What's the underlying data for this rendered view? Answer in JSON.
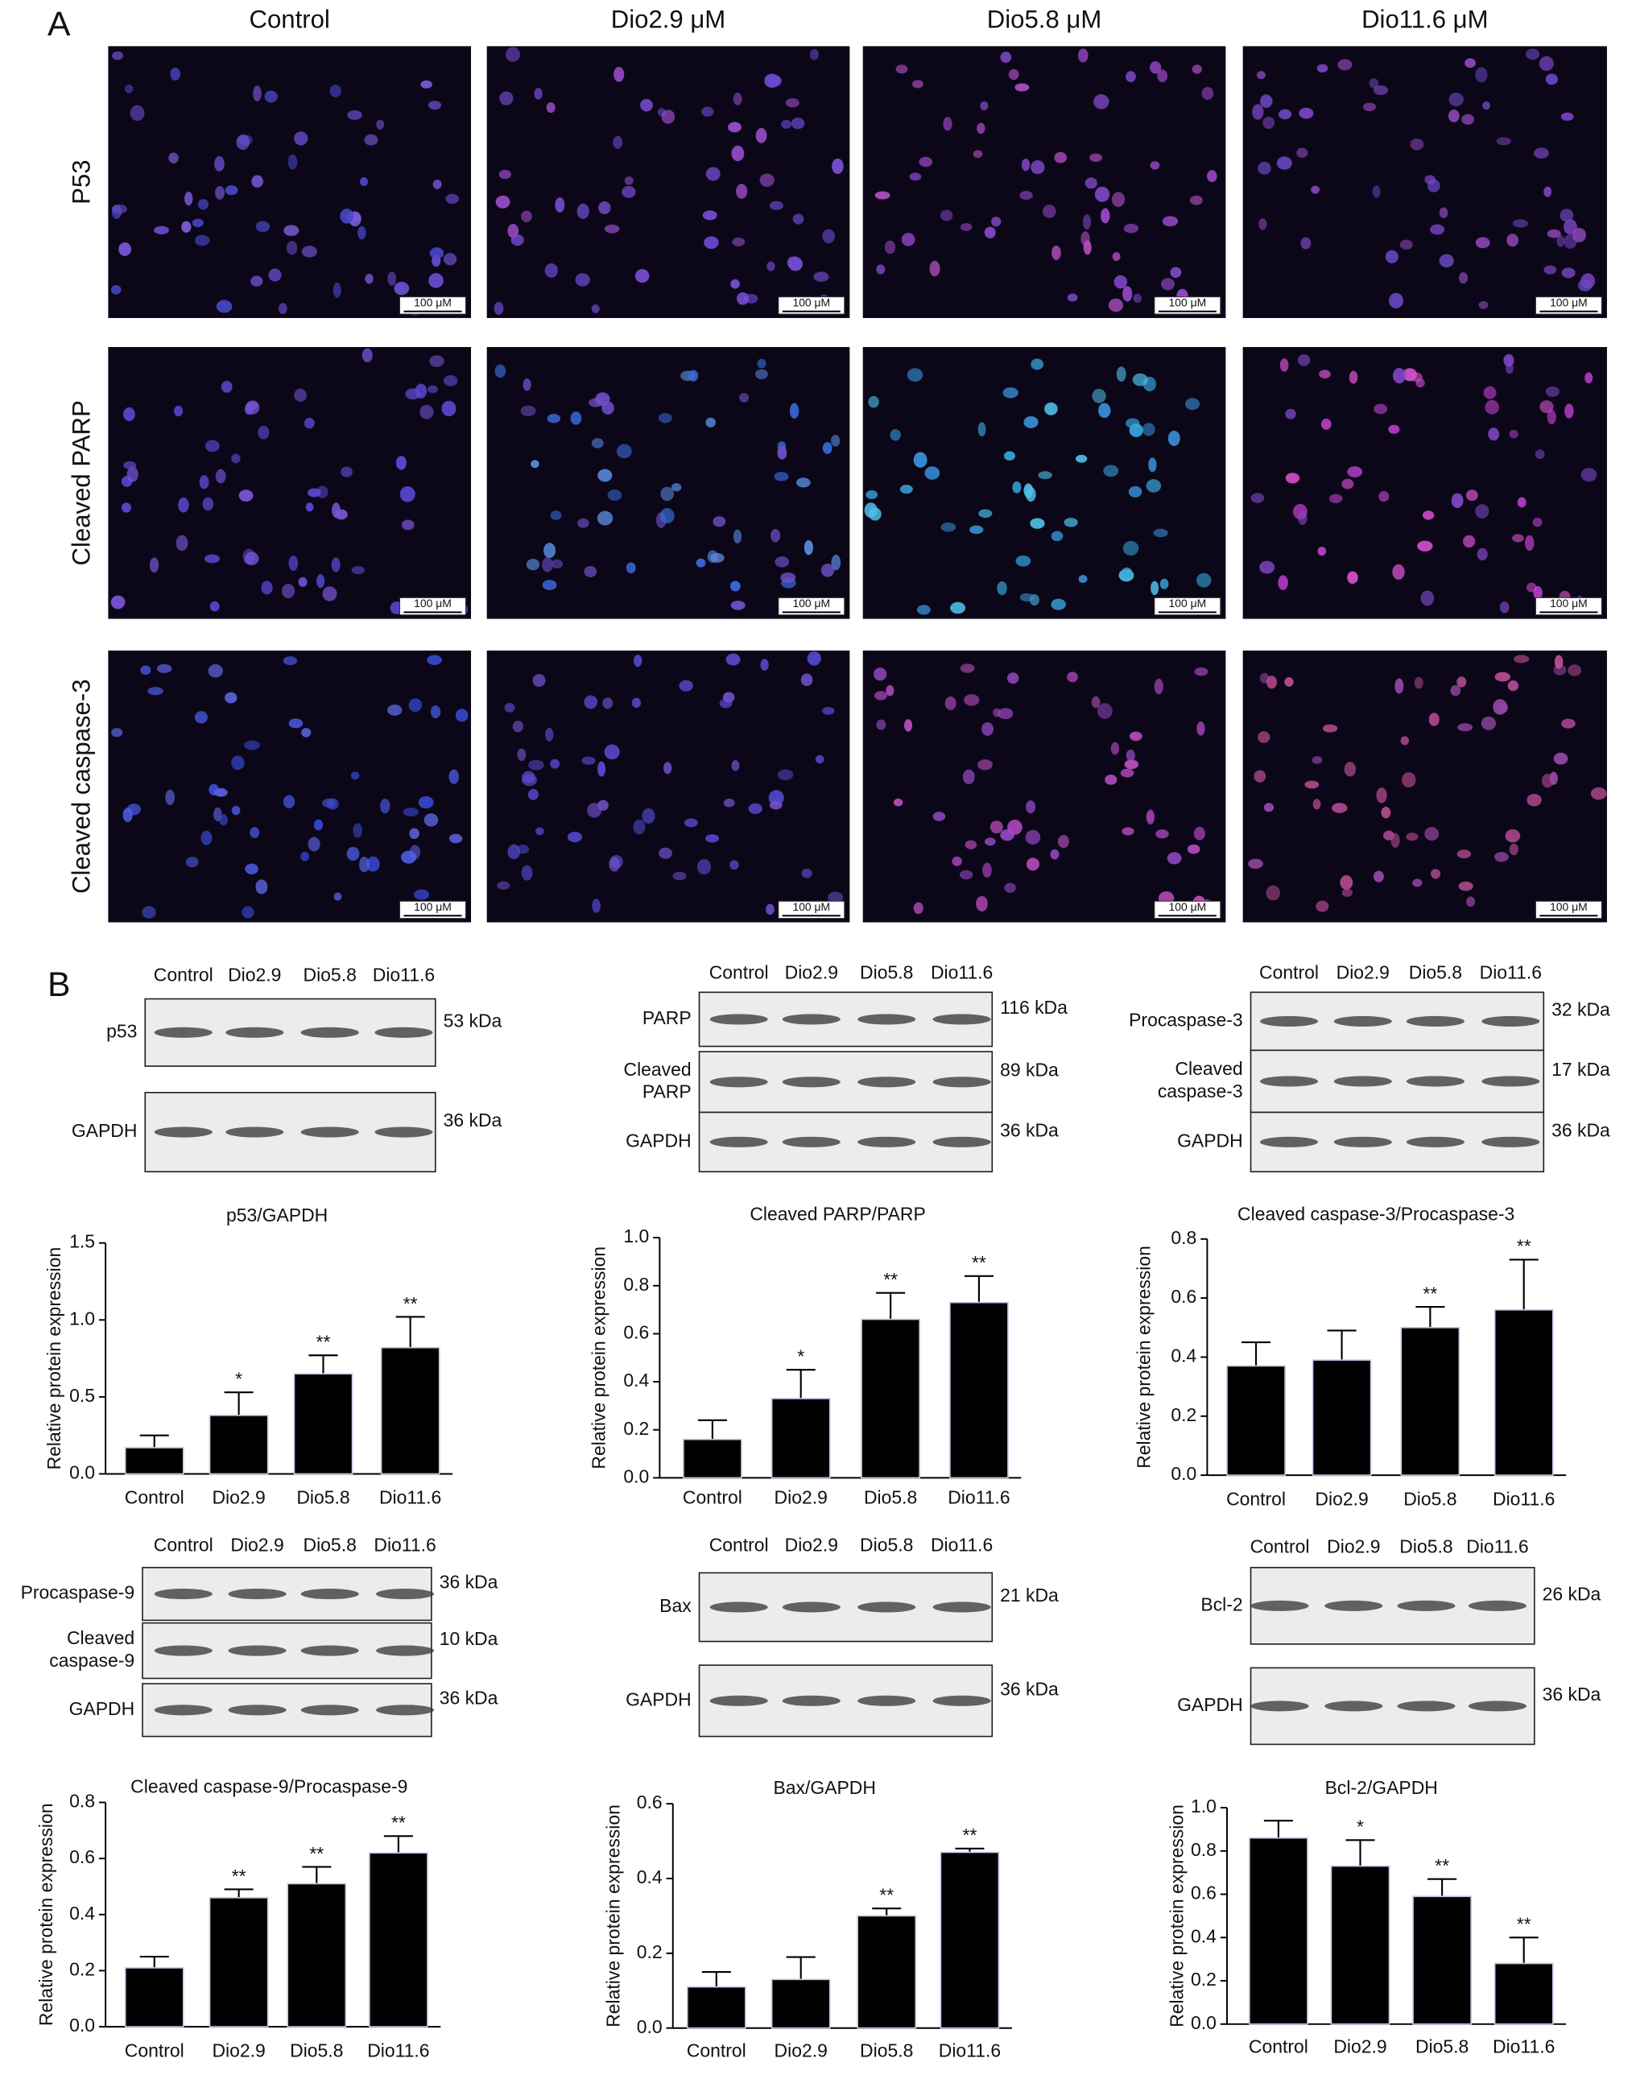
{
  "panel_a": {
    "label": "A",
    "columns": [
      "Control",
      "Dio2.9 μM",
      "Dio5.8 μM",
      "Dio11.6 μM"
    ],
    "rows": [
      "P53",
      "Cleaved PARP",
      "Cleaved caspase-3"
    ],
    "scale_bar": "100 μM"
  },
  "panel_b": {
    "label": "B"
  },
  "blots": [
    {
      "lanes": [
        "Control",
        "Dio2.9",
        "Dio5.8",
        "Dio11.6"
      ],
      "rows": [
        {
          "label": [
            "p53"
          ],
          "size": "53 kDa"
        },
        {
          "label": [
            "GAPDH"
          ],
          "size": "36 kDa"
        }
      ]
    },
    {
      "lanes": [
        "Control",
        "Dio2.9",
        "Dio5.8",
        "Dio11.6"
      ],
      "rows": [
        {
          "label": [
            "PARP"
          ],
          "size": "116 kDa"
        },
        {
          "label": [
            "Cleaved",
            "PARP"
          ],
          "size": "89 kDa"
        },
        {
          "label": [
            "GAPDH"
          ],
          "size": "36 kDa"
        }
      ]
    },
    {
      "lanes": [
        "Control",
        "Dio2.9",
        "Dio5.8",
        "Dio11.6"
      ],
      "rows": [
        {
          "label": [
            "Procaspase-3"
          ],
          "size": "32 kDa"
        },
        {
          "label": [
            "Cleaved",
            "caspase-3"
          ],
          "size": "17 kDa"
        },
        {
          "label": [
            "GAPDH"
          ],
          "size": "36 kDa"
        }
      ]
    },
    {
      "lanes": [
        "Control",
        "Dio2.9",
        "Dio5.8",
        "Dio11.6"
      ],
      "rows": [
        {
          "label": [
            "Procaspase-9"
          ],
          "size": "36 kDa"
        },
        {
          "label": [
            "Cleaved",
            "caspase-9"
          ],
          "size": "10 kDa"
        },
        {
          "label": [
            "GAPDH"
          ],
          "size": "36 kDa"
        }
      ]
    },
    {
      "lanes": [
        "Control",
        "Dio2.9",
        "Dio5.8",
        "Dio11.6"
      ],
      "rows": [
        {
          "label": [
            "Bax"
          ],
          "size": "21 kDa"
        },
        {
          "label": [
            "GAPDH"
          ],
          "size": "36 kDa"
        }
      ]
    },
    {
      "lanes": [
        "Control",
        "Dio2.9",
        "Dio5.8",
        "Dio11.6"
      ],
      "rows": [
        {
          "label": [
            "Bcl-2"
          ],
          "size": "26 kDa"
        },
        {
          "label": [
            "GAPDH"
          ],
          "size": "36 kDa"
        }
      ]
    }
  ],
  "chart_data": [
    {
      "type": "bar",
      "title": "p53/GAPDH",
      "y_label": "Relative protein expression",
      "categories": [
        "Control",
        "Dio2.9",
        "Dio5.8",
        "Dio11.6"
      ],
      "values": [
        0.17,
        0.38,
        0.65,
        0.82
      ],
      "errors": [
        0.08,
        0.15,
        0.12,
        0.2
      ],
      "annotations": [
        null,
        "*",
        "**",
        "**"
      ],
      "color": "#000000",
      "ylim": [
        0,
        1.5
      ],
      "yticks": [
        {
          "value": 0,
          "label": "0.0"
        },
        {
          "value": 0.5,
          "label": "0.5"
        },
        {
          "value": 1,
          "label": "1.0"
        },
        {
          "value": 1.5,
          "label": "1.5"
        }
      ]
    },
    {
      "type": "bar",
      "title": "Cleaved PARP/PARP",
      "y_label": "Relative protein expression",
      "categories": [
        "Control",
        "Dio2.9",
        "Dio5.8",
        "Dio11.6"
      ],
      "values": [
        0.16,
        0.33,
        0.66,
        0.73
      ],
      "errors": [
        0.08,
        0.12,
        0.11,
        0.11
      ],
      "annotations": [
        null,
        "*",
        "**",
        "**"
      ],
      "color": "#000000",
      "ylim": [
        0,
        1
      ],
      "yticks": [
        {
          "value": 0,
          "label": "0.0"
        },
        0.2,
        0.4,
        0.6,
        0.8,
        {
          "value": 1,
          "label": "1.0"
        }
      ]
    },
    {
      "type": "bar",
      "title": "Cleaved caspase-3/Procaspase-3",
      "y_label": "Relative protein expression",
      "categories": [
        "Control",
        "Dio2.9",
        "Dio5.8",
        "Dio11.6"
      ],
      "values": [
        0.37,
        0.39,
        0.5,
        0.56
      ],
      "errors": [
        0.08,
        0.1,
        0.07,
        0.17
      ],
      "annotations": [
        null,
        null,
        "**",
        "**"
      ],
      "color": "#000000",
      "ylim": [
        0,
        0.8
      ],
      "yticks": [
        {
          "value": 0,
          "label": "0.0"
        },
        0.2,
        0.4,
        0.6,
        0.8
      ]
    },
    {
      "type": "bar",
      "title": "Cleaved caspase-9/Procaspase-9",
      "y_label": "Relative protein expression",
      "categories": [
        "Control",
        "Dio2.9",
        "Dio5.8",
        "Dio11.6"
      ],
      "values": [
        0.21,
        0.46,
        0.51,
        0.62
      ],
      "errors": [
        0.04,
        0.03,
        0.06,
        0.06
      ],
      "annotations": [
        null,
        "**",
        "**",
        "**"
      ],
      "color": "#000000",
      "ylim": [
        0,
        0.8
      ],
      "yticks": [
        {
          "value": 0,
          "label": "0.0"
        },
        0.2,
        0.4,
        0.6,
        0.8
      ]
    },
    {
      "type": "bar",
      "title": "Bax/GAPDH",
      "y_label": "Relative protein expression",
      "categories": [
        "Control",
        "Dio2.9",
        "Dio5.8",
        "Dio11.6"
      ],
      "values": [
        0.11,
        0.13,
        0.3,
        0.47
      ],
      "errors": [
        0.04,
        0.06,
        0.02,
        0.01
      ],
      "annotations": [
        null,
        null,
        "**",
        "**"
      ],
      "color": "#000000",
      "ylim": [
        0,
        0.6
      ],
      "yticks": [
        {
          "value": 0,
          "label": "0.0"
        },
        0.2,
        0.4,
        0.6
      ]
    },
    {
      "type": "bar",
      "title": "Bcl-2/GAPDH",
      "y_label": "Relative protein expression",
      "categories": [
        "Control",
        "Dio2.9",
        "Dio5.8",
        "Dio11.6"
      ],
      "values": [
        0.86,
        0.73,
        0.59,
        0.28
      ],
      "errors": [
        0.08,
        0.12,
        0.08,
        0.12
      ],
      "annotations": [
        null,
        "*",
        "**",
        "**"
      ],
      "color": "#000000",
      "ylim": [
        0,
        1
      ],
      "yticks": [
        {
          "value": 0,
          "label": "0.0"
        },
        0.2,
        0.4,
        0.6,
        0.8,
        {
          "value": 1,
          "label": "1.0"
        }
      ]
    }
  ]
}
